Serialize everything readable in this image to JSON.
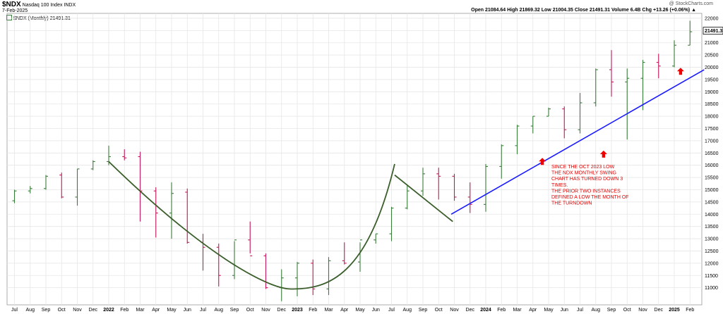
{
  "header": {
    "symbol": "$NDX",
    "name": "Nasdaq 100 Index",
    "exchange": "INDX",
    "date": "7-Feb-2025",
    "watermark": "@ StockCharts.com",
    "ohlc": "Open 21084.64  High 21869.32  Low 21004.35  Close 21491.31  Volume 6.4B  Chg +13.26 (+0.06%) ▲",
    "legend": "$NDX (Monthly) 21491.31"
  },
  "chart_data": {
    "type": "ohlc-bar",
    "title": "$NDX Nasdaq 100 Index INDX",
    "ylim": [
      10300,
      22200
    ],
    "yticks": [
      11000,
      11500,
      12000,
      12500,
      13000,
      13500,
      14000,
      14500,
      15000,
      15500,
      16000,
      16500,
      17000,
      17500,
      18000,
      18500,
      19000,
      19500,
      20000,
      20500,
      21000,
      21500,
      22000
    ],
    "last_price_label": "21491.31",
    "x_labels": [
      "Jul",
      "Aug",
      "Sep",
      "Oct",
      "Nov",
      "Dec",
      "2022",
      "Feb",
      "Mar",
      "Apr",
      "May",
      "Jun",
      "Jul",
      "Aug",
      "Sep",
      "Oct",
      "Nov",
      "Dec",
      "2023",
      "Feb",
      "Mar",
      "Apr",
      "May",
      "Jun",
      "Jul",
      "Aug",
      "Sep",
      "Oct",
      "Nov",
      "Dec",
      "2024",
      "Feb",
      "Mar",
      "Apr",
      "May",
      "Jun",
      "Jul",
      "Aug",
      "Sep",
      "Oct",
      "Nov",
      "Dec",
      "2025",
      "Feb"
    ],
    "bold_labels": [
      "2022",
      "2023",
      "2024",
      "2025"
    ],
    "bars": [
      {
        "o": 14550,
        "h": 15000,
        "l": 14450,
        "c": 14950
      },
      {
        "o": 14950,
        "h": 15150,
        "l": 14850,
        "c": 15050
      },
      {
        "o": 15050,
        "h": 15600,
        "l": 15000,
        "c": 15550
      },
      {
        "o": 15600,
        "h": 15700,
        "l": 14650,
        "c": 14700
      },
      {
        "o": 14700,
        "h": 15850,
        "l": 14350,
        "c": 15850
      },
      {
        "o": 15850,
        "h": 16200,
        "l": 15800,
        "c": 16150
      },
      {
        "o": 16150,
        "h": 16800,
        "l": 16000,
        "c": 16350
      },
      {
        "o": 16350,
        "h": 16650,
        "l": 16200,
        "c": 16300
      },
      {
        "o": 16350,
        "h": 16550,
        "l": 13700,
        "c": 14950
      },
      {
        "o": 14950,
        "h": 15100,
        "l": 13050,
        "c": 14050
      },
      {
        "o": 14050,
        "h": 15300,
        "l": 13000,
        "c": 14850
      },
      {
        "o": 14900,
        "h": 15050,
        "l": 12800,
        "c": 12850
      },
      {
        "o": 12850,
        "h": 13200,
        "l": 11700,
        "c": 12650
      },
      {
        "o": 12650,
        "h": 12800,
        "l": 11050,
        "c": 11500
      },
      {
        "o": 11500,
        "h": 12900,
        "l": 11350,
        "c": 12950
      },
      {
        "o": 12950,
        "h": 13700,
        "l": 12400,
        "c": 12300
      },
      {
        "o": 12300,
        "h": 12400,
        "l": 10950,
        "c": 11000
      },
      {
        "o": 11000,
        "h": 11750,
        "l": 10450,
        "c": 11400
      },
      {
        "o": 11400,
        "h": 12050,
        "l": 10650,
        "c": 12000
      },
      {
        "o": 12000,
        "h": 12150,
        "l": 10700,
        "c": 10950
      },
      {
        "o": 10950,
        "h": 12250,
        "l": 10700,
        "c": 12100
      },
      {
        "o": 12100,
        "h": 12850,
        "l": 11950,
        "c": 12000
      },
      {
        "o": 12050,
        "h": 12850,
        "l": 11650,
        "c": 12950
      },
      {
        "o": 12950,
        "h": 13200,
        "l": 12800,
        "c": 13200
      },
      {
        "o": 13200,
        "h": 14300,
        "l": 12900,
        "c": 14250
      },
      {
        "o": 14250,
        "h": 15200,
        "l": 14200,
        "c": 14950
      },
      {
        "o": 14950,
        "h": 15900,
        "l": 14750,
        "c": 15650
      },
      {
        "o": 15650,
        "h": 15900,
        "l": 14600,
        "c": 15550
      },
      {
        "o": 15550,
        "h": 15650,
        "l": 14550,
        "c": 14700
      },
      {
        "o": 14700,
        "h": 15300,
        "l": 14050,
        "c": 14400
      },
      {
        "o": 14400,
        "h": 16050,
        "l": 14100,
        "c": 15950
      },
      {
        "o": 15950,
        "h": 16850,
        "l": 15450,
        "c": 16800
      },
      {
        "o": 16800,
        "h": 17650,
        "l": 16450,
        "c": 17600
      },
      {
        "o": 17600,
        "h": 18000,
        "l": 17300,
        "c": 18000
      },
      {
        "o": 18000,
        "h": 18350,
        "l": 18000,
        "c": 18300
      },
      {
        "o": 18300,
        "h": 18400,
        "l": 17100,
        "c": 17450
      },
      {
        "o": 17450,
        "h": 18950,
        "l": 17300,
        "c": 18550
      },
      {
        "o": 18550,
        "h": 19950,
        "l": 18400,
        "c": 19900
      },
      {
        "o": 19900,
        "h": 20700,
        "l": 18800,
        "c": 19400
      },
      {
        "o": 19400,
        "h": 19950,
        "l": 17050,
        "c": 19550
      },
      {
        "o": 19550,
        "h": 20300,
        "l": 18250,
        "c": 20200
      },
      {
        "o": 20200,
        "h": 20550,
        "l": 19550,
        "c": 20050
      },
      {
        "o": 20050,
        "h": 21100,
        "l": 20000,
        "c": 20900
      },
      {
        "o": 20900,
        "h": 21900,
        "l": 20900,
        "c": 21450
      }
    ],
    "annotation_lines": [
      "SINCE THE OCT 2023 LOW",
      "THE NDX MONTHLY SWING",
      "CHART HAS TURNED DOWN 3",
      "TIMES.",
      "THE PRIOR TWO INSTANCES",
      "DEFINED A LOW THE MONTH OF",
      "THE TURNDOWN"
    ],
    "colors": {
      "up": "#3a7d3a",
      "down": "#c2185b",
      "curve": "#3b5e2b",
      "trendline": "#1a1aff",
      "arrow": "#ee0000",
      "annotation": "#e00000",
      "grid": "#e6e6e6"
    }
  }
}
